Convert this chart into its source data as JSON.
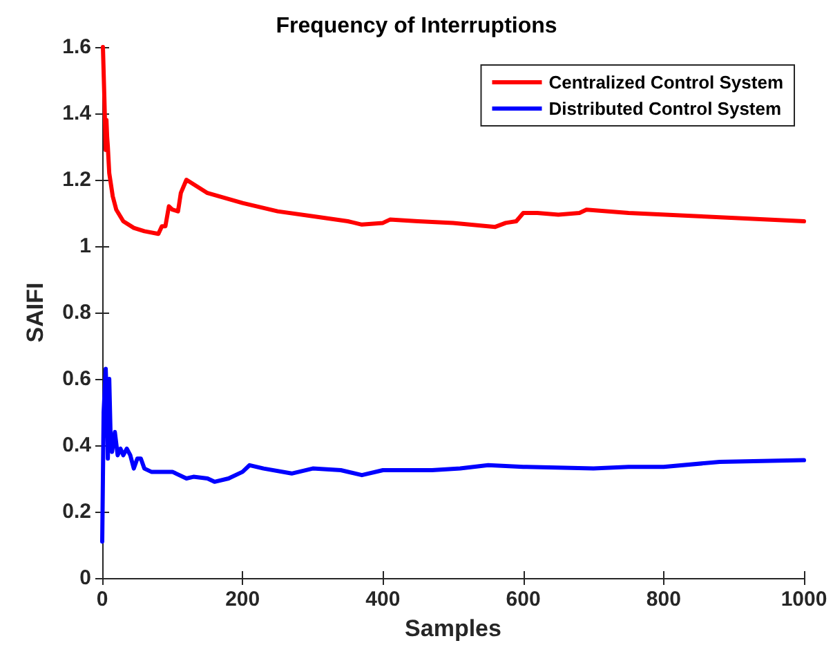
{
  "chart_data": {
    "type": "line",
    "title": "Frequency of Interruptions",
    "xlabel": "Samples",
    "ylabel": "SAIFI",
    "xlim": [
      0,
      1000
    ],
    "xticks": [
      0,
      200,
      400,
      600,
      800,
      1000
    ],
    "ylim": [
      0,
      1.6
    ],
    "yticks": [
      0,
      0.2,
      0.4,
      0.6,
      0.8,
      1,
      1.2,
      1.4,
      1.6
    ],
    "grid": false,
    "legend": "top right",
    "marker": "none",
    "line_style": "solid",
    "series": [
      {
        "name": "Centralized Control System",
        "color": "#ff0000",
        "x": [
          1,
          3,
          5,
          6,
          7,
          8,
          10,
          15,
          20,
          30,
          45,
          60,
          80,
          85,
          90,
          95,
          100,
          108,
          112,
          120,
          150,
          200,
          250,
          300,
          350,
          370,
          400,
          410,
          450,
          500,
          560,
          575,
          590,
          600,
          620,
          650,
          680,
          690,
          750,
          850,
          1000
        ],
        "values": [
          1.6,
          1.45,
          1.29,
          1.38,
          1.33,
          1.3,
          1.22,
          1.15,
          1.11,
          1.075,
          1.055,
          1.045,
          1.037,
          1.06,
          1.06,
          1.12,
          1.11,
          1.105,
          1.16,
          1.2,
          1.16,
          1.13,
          1.105,
          1.09,
          1.075,
          1.065,
          1.07,
          1.08,
          1.075,
          1.07,
          1.058,
          1.07,
          1.075,
          1.1,
          1.1,
          1.095,
          1.1,
          1.11,
          1.1,
          1.09,
          1.075
        ]
      },
      {
        "name": "Distributed Control System",
        "color": "#0000ff",
        "x": [
          0,
          2,
          5,
          7,
          8,
          10,
          12,
          14,
          18,
          22,
          26,
          30,
          35,
          40,
          45,
          50,
          55,
          60,
          70,
          80,
          100,
          120,
          130,
          150,
          160,
          180,
          200,
          210,
          230,
          270,
          300,
          340,
          370,
          400,
          470,
          510,
          550,
          600,
          700,
          750,
          800,
          880,
          1000
        ],
        "values": [
          0.11,
          0.5,
          0.63,
          0.5,
          0.36,
          0.6,
          0.42,
          0.38,
          0.44,
          0.37,
          0.39,
          0.37,
          0.39,
          0.37,
          0.33,
          0.36,
          0.36,
          0.33,
          0.32,
          0.32,
          0.32,
          0.3,
          0.305,
          0.3,
          0.29,
          0.3,
          0.32,
          0.34,
          0.33,
          0.315,
          0.33,
          0.325,
          0.31,
          0.325,
          0.325,
          0.33,
          0.34,
          0.335,
          0.33,
          0.335,
          0.335,
          0.35,
          0.355
        ]
      }
    ]
  }
}
